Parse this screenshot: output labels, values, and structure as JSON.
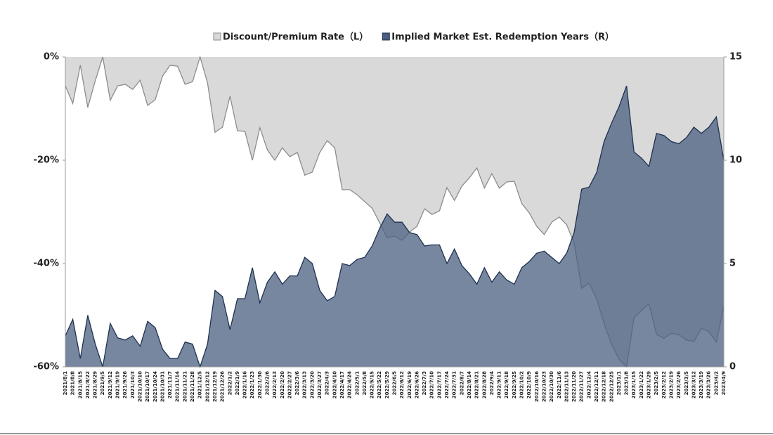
{
  "chart_data": {
    "type": "area",
    "categories": [
      "2021/8/1",
      "2021/8/8",
      "2021/8/15",
      "2021/8/22",
      "2021/8/29",
      "2021/9/5",
      "2021/9/12",
      "2021/9/19",
      "2021/9/26",
      "2021/10/3",
      "2021/10/10",
      "2021/10/17",
      "2021/10/24",
      "2021/10/31",
      "2021/11/7",
      "2021/11/14",
      "2021/11/21",
      "2021/11/28",
      "2021/12/5",
      "2021/12/12",
      "2021/12/19",
      "2021/12/26",
      "2022/1/2",
      "2022/1/9",
      "2022/1/16",
      "2022/1/23",
      "2022/1/30",
      "2022/2/6",
      "2022/2/13",
      "2022/2/20",
      "2022/2/27",
      "2022/3/6",
      "2022/3/13",
      "2022/3/20",
      "2022/3/27",
      "2022/4/3",
      "2022/4/10",
      "2022/4/17",
      "2022/4/24",
      "2022/5/1",
      "2022/5/8",
      "2022/5/15",
      "2022/5/22",
      "2022/5/29",
      "2022/6/5",
      "2022/6/12",
      "2022/6/19",
      "2022/6/26",
      "2022/7/3",
      "2022/7/10",
      "2022/7/17",
      "2022/7/24",
      "2022/7/31",
      "2022/8/7",
      "2022/8/14",
      "2022/8/21",
      "2022/8/28",
      "2022/9/4",
      "2022/9/11",
      "2022/9/18",
      "2022/9/25",
      "2022/10/2",
      "2022/10/9",
      "2022/10/16",
      "2022/10/23",
      "2022/10/30",
      "2022/11/6",
      "2022/11/13",
      "2022/11/20",
      "2022/11/27",
      "2022/12/4",
      "2022/12/11",
      "2022/12/18",
      "2022/12/25",
      "2023/1/1",
      "2023/1/8",
      "2023/1/15",
      "2023/1/22",
      "2023/1/29",
      "2023/2/5",
      "2023/2/12",
      "2023/2/19",
      "2023/2/26",
      "2023/3/5",
      "2023/3/12",
      "2023/3/19",
      "2023/3/26",
      "2023/4/2",
      "2023/4/9"
    ],
    "series": [
      {
        "name": "Discount/Premium Rate（L）",
        "color": "#d9d9d9",
        "line_color": "#8c8c8c",
        "axis": "y",
        "values": [
          -5.6,
          -9,
          -1.6,
          -9.8,
          -4.6,
          0,
          -8.4,
          -5.6,
          -5.3,
          -6.3,
          -4.5,
          -9.4,
          -8.3,
          -3.7,
          -1.6,
          -1.8,
          -5.3,
          -4.8,
          0,
          -5,
          -14.6,
          -13.6,
          -7.6,
          -14.3,
          -14.4,
          -20,
          -13.7,
          -18,
          -20,
          -17.6,
          -19.3,
          -18.5,
          -22.9,
          -22.3,
          -18.5,
          -16.2,
          -17.6,
          -25.7,
          -25.7,
          -26.7,
          -28,
          -29.3,
          -32.1,
          -35,
          -34.7,
          -35.5,
          -33.9,
          -32.8,
          -29.4,
          -30.5,
          -29.8,
          -25.3,
          -27.8,
          -25,
          -23.4,
          -21.5,
          -25.4,
          -22.6,
          -25.4,
          -24.2,
          -24.1,
          -28.4,
          -30.2,
          -32.8,
          -34.4,
          -32,
          -31,
          -32.5,
          -36,
          -44.8,
          -43.8,
          -46.8,
          -51.6,
          -55.6,
          -58.5,
          -60,
          -50.5,
          -49.1,
          -47.8,
          -53.7,
          -54.5,
          -53.5,
          -53.8,
          -54.8,
          -55.1,
          -52.5,
          -53.2,
          -55.2,
          -48.2
        ]
      },
      {
        "name": "Implied Market Est. Redemption Years（R）",
        "color": "#4a5f80",
        "line_color": "#1f3050",
        "axis": "y2",
        "values": [
          1.5,
          2.3,
          0.4,
          2.5,
          1.1,
          0,
          2.1,
          1.4,
          1.3,
          1.5,
          1,
          2.2,
          1.9,
          0.85,
          0.4,
          0.4,
          1.2,
          1.1,
          0,
          1.1,
          3.7,
          3.4,
          1.8,
          3.3,
          3.3,
          4.8,
          3.1,
          4.1,
          4.6,
          4,
          4.4,
          4.4,
          5.3,
          5,
          3.7,
          3.2,
          3.4,
          5,
          4.9,
          5.2,
          5.3,
          5.85,
          6.7,
          7.4,
          7,
          7,
          6.5,
          6.4,
          5.85,
          5.9,
          5.9,
          5,
          5.7,
          4.9,
          4.5,
          4,
          4.8,
          4.1,
          4.6,
          4.2,
          4,
          4.8,
          5.1,
          5.5,
          5.6,
          5.3,
          5,
          5.5,
          6.5,
          8.6,
          8.7,
          9.4,
          10.9,
          11.8,
          12.6,
          13.6,
          10.4,
          10.1,
          9.7,
          11.3,
          11.2,
          10.9,
          10.8,
          11.1,
          11.6,
          11.3,
          11.6,
          12.1,
          10
        ]
      }
    ],
    "ylim": [
      -60,
      0
    ],
    "yticks": [
      {
        "value": 0,
        "label": "0%"
      },
      {
        "value": -20,
        "label": "-20%"
      },
      {
        "value": -40,
        "label": "-40%"
      },
      {
        "value": -60,
        "label": "-60%"
      }
    ],
    "y2lim": [
      0,
      15
    ],
    "y2ticks": [
      0,
      5,
      10,
      15
    ],
    "legend": "top"
  }
}
